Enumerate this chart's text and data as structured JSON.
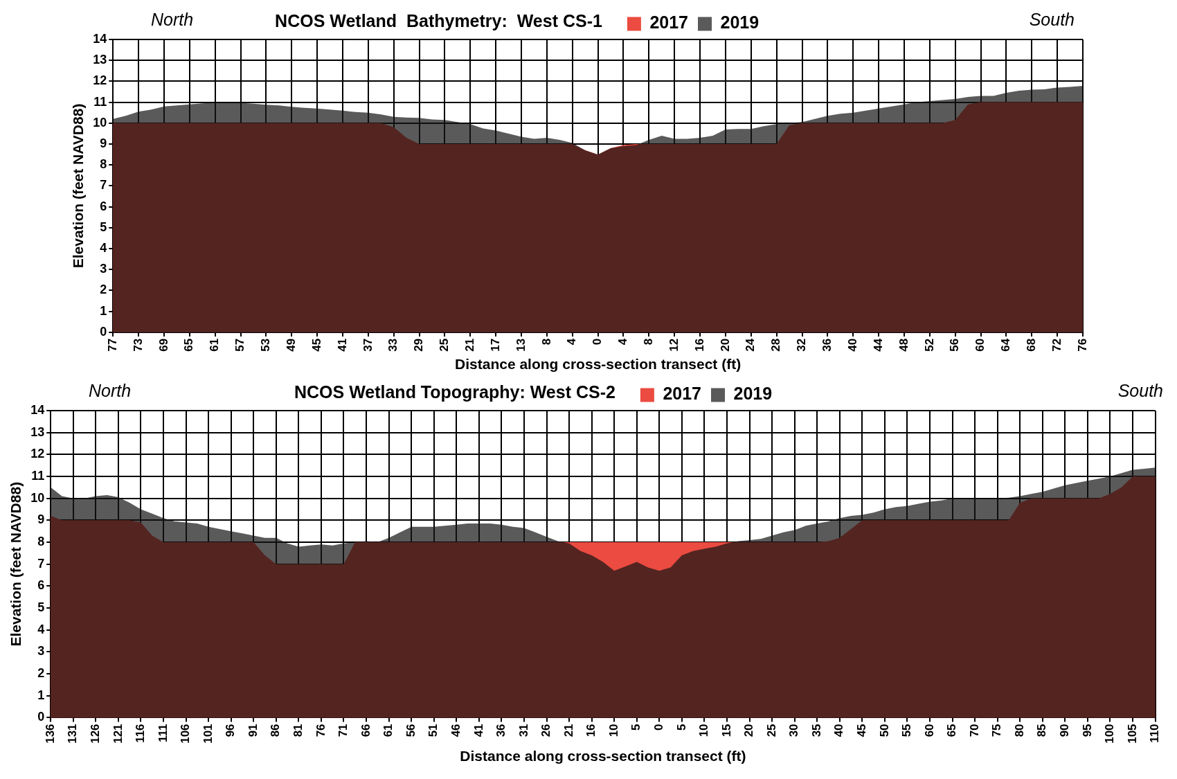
{
  "chart_data": [
    {
      "type": "area",
      "title": "NCOS Wetland  Bathymetry:  West CS-1",
      "xlabel": "Distance along cross-section transect (ft)",
      "ylabel": "Elevation (feet NAVD88)",
      "annotations": [
        "North",
        "South"
      ],
      "categories": [
        "77",
        null,
        "73",
        null,
        "69",
        null,
        "65",
        null,
        "61",
        null,
        "57",
        null,
        "53",
        null,
        "49",
        null,
        "45",
        null,
        "41",
        null,
        "37",
        null,
        "33",
        null,
        "29",
        null,
        "25",
        null,
        "21",
        null,
        "17",
        null,
        "13",
        null,
        "8",
        null,
        "4",
        null,
        "0",
        null,
        "4",
        null,
        "8",
        null,
        "12",
        null,
        "16",
        null,
        "20",
        null,
        "24",
        null,
        "28",
        null,
        "32",
        null,
        "36",
        null,
        "40",
        null,
        "44",
        null,
        "48",
        null,
        "52",
        null,
        "56",
        null,
        "60",
        null,
        "64",
        null,
        "68",
        null,
        "72",
        null,
        "76"
      ],
      "series": [
        {
          "name": "2017",
          "color": "#eb4b40",
          "values": [
            10,
            10,
            10,
            10,
            10,
            10,
            10,
            10,
            10,
            10,
            10,
            10,
            10,
            10,
            10,
            10,
            10,
            10,
            10,
            10,
            10,
            10,
            9.8,
            9.3,
            9,
            9,
            9,
            9,
            9,
            9,
            9,
            9,
            9,
            9,
            9,
            9,
            9,
            8.7,
            8.5,
            8.8,
            8.95,
            9,
            9,
            9,
            9,
            9,
            9,
            9,
            9,
            9,
            9,
            9,
            9,
            9.9,
            10,
            10,
            10,
            10,
            10,
            10,
            10,
            10,
            10,
            10,
            10,
            10,
            10.15,
            10.9,
            11,
            11,
            11,
            11,
            11,
            11,
            11,
            11,
            11
          ]
        },
        {
          "name": "2019",
          "color": "#141414",
          "values": [
            10.2,
            10.35,
            10.55,
            10.65,
            10.8,
            10.85,
            10.9,
            10.95,
            10.98,
            11.0,
            10.97,
            10.93,
            10.88,
            10.85,
            10.78,
            10.73,
            10.7,
            10.65,
            10.6,
            10.53,
            10.5,
            10.42,
            10.3,
            10.27,
            10.25,
            10.18,
            10.15,
            10.05,
            9.95,
            9.75,
            9.65,
            9.5,
            9.35,
            9.25,
            9.3,
            9.2,
            9.05,
            8.7,
            8.5,
            8.8,
            8.9,
            8.95,
            9.2,
            9.4,
            9.25,
            9.25,
            9.3,
            9.4,
            9.7,
            9.72,
            9.72,
            9.85,
            9.95,
            10.0,
            10.05,
            10.2,
            10.35,
            10.45,
            10.5,
            10.6,
            10.7,
            10.8,
            10.9,
            11.0,
            11.05,
            11.1,
            11.15,
            11.25,
            11.3,
            11.3,
            11.45,
            11.55,
            11.6,
            11.62,
            11.7,
            11.73,
            11.78
          ]
        }
      ],
      "ylim": [
        0,
        14
      ],
      "yticks": [
        0,
        1,
        2,
        3,
        4,
        5,
        6,
        7,
        8,
        9,
        10,
        11,
        12,
        13,
        14
      ],
      "grid": true,
      "legend": "top"
    },
    {
      "type": "area",
      "title": "NCOS Wetland Topography: West CS-2",
      "xlabel": "Distance along cross-section transect (ft)",
      "ylabel": "Elevation (feet NAVD88)",
      "annotations": [
        "North",
        "South"
      ],
      "categories": [
        "136",
        null,
        "131",
        null,
        "126",
        null,
        "121",
        null,
        "116",
        null,
        "111",
        null,
        "106",
        null,
        "101",
        null,
        "96",
        null,
        "91",
        null,
        "86",
        null,
        "81",
        null,
        "76",
        null,
        "71",
        null,
        "66",
        null,
        "61",
        null,
        "56",
        null,
        "51",
        null,
        "46",
        null,
        "41",
        null,
        "36",
        null,
        "31",
        null,
        "26",
        null,
        "21",
        null,
        "16",
        null,
        "10",
        null,
        "5",
        null,
        "0",
        null,
        "5",
        null,
        "10",
        null,
        "15",
        null,
        "20",
        null,
        "25",
        null,
        "30",
        null,
        "35",
        null,
        "40",
        null,
        "45",
        null,
        "50",
        null,
        "55",
        null,
        "60",
        null,
        "65",
        null,
        "70",
        null,
        "75",
        null,
        "80",
        null,
        "85",
        null,
        "90",
        null,
        "95",
        null,
        "100",
        null,
        "105",
        null,
        "110"
      ],
      "series": [
        {
          "name": "2017",
          "color": "#eb4b40",
          "values": [
            9.2,
            9,
            9,
            9,
            9,
            9,
            9,
            9,
            8.9,
            8.3,
            8,
            8,
            8,
            8,
            8,
            8,
            8,
            8,
            8,
            7.4,
            7,
            7,
            7,
            7,
            7,
            7,
            7,
            8,
            8,
            8,
            8,
            8,
            8,
            8,
            8,
            8,
            8,
            8,
            8,
            8,
            8,
            8,
            8,
            8,
            8,
            8,
            8,
            8,
            8,
            8,
            8,
            8,
            8,
            8,
            8,
            8,
            8,
            8,
            8,
            8,
            8,
            8,
            8,
            8,
            8,
            8,
            8,
            8,
            8,
            8.05,
            8.2,
            8.6,
            9,
            9,
            9,
            9,
            9,
            9,
            9,
            9,
            9,
            9,
            9,
            9,
            9,
            9,
            9.8,
            10,
            10,
            10,
            10,
            10,
            10,
            10,
            10.2,
            10.5,
            11,
            11,
            11
          ]
        },
        {
          "name": "2019",
          "color": "#141414",
          "values": [
            10.5,
            10.1,
            10.0,
            10.0,
            10.1,
            10.15,
            10.05,
            9.8,
            9.5,
            9.3,
            9.1,
            8.95,
            8.9,
            8.85,
            8.7,
            8.6,
            8.5,
            8.4,
            8.3,
            8.2,
            8.2,
            7.95,
            7.8,
            7.85,
            7.9,
            7.85,
            7.95,
            8.0,
            8.05,
            8.0,
            8.2,
            8.45,
            8.7,
            8.7,
            8.7,
            8.75,
            8.8,
            8.85,
            8.85,
            8.85,
            8.8,
            8.7,
            8.65,
            8.45,
            8.25,
            8.05,
            7.95,
            7.6,
            7.4,
            7.1,
            6.7,
            6.9,
            7.1,
            6.85,
            6.7,
            6.85,
            7.4,
            7.6,
            7.7,
            7.8,
            7.95,
            8.05,
            8.1,
            8.15,
            8.3,
            8.45,
            8.55,
            8.75,
            8.85,
            8.95,
            9.1,
            9.2,
            9.25,
            9.35,
            9.5,
            9.6,
            9.65,
            9.75,
            9.85,
            9.9,
            10.0,
            10.0,
            10.0,
            10.0,
            10.0,
            10.03,
            10.1,
            10.2,
            10.3,
            10.45,
            10.6,
            10.7,
            10.8,
            10.9,
            11.0,
            11.15,
            11.3,
            11.35,
            11.4
          ]
        }
      ],
      "ylim": [
        0,
        14
      ],
      "yticks": [
        0,
        1,
        2,
        3,
        4,
        5,
        6,
        7,
        8,
        9,
        10,
        11,
        12,
        13,
        14
      ],
      "grid": true,
      "legend": "top"
    }
  ]
}
